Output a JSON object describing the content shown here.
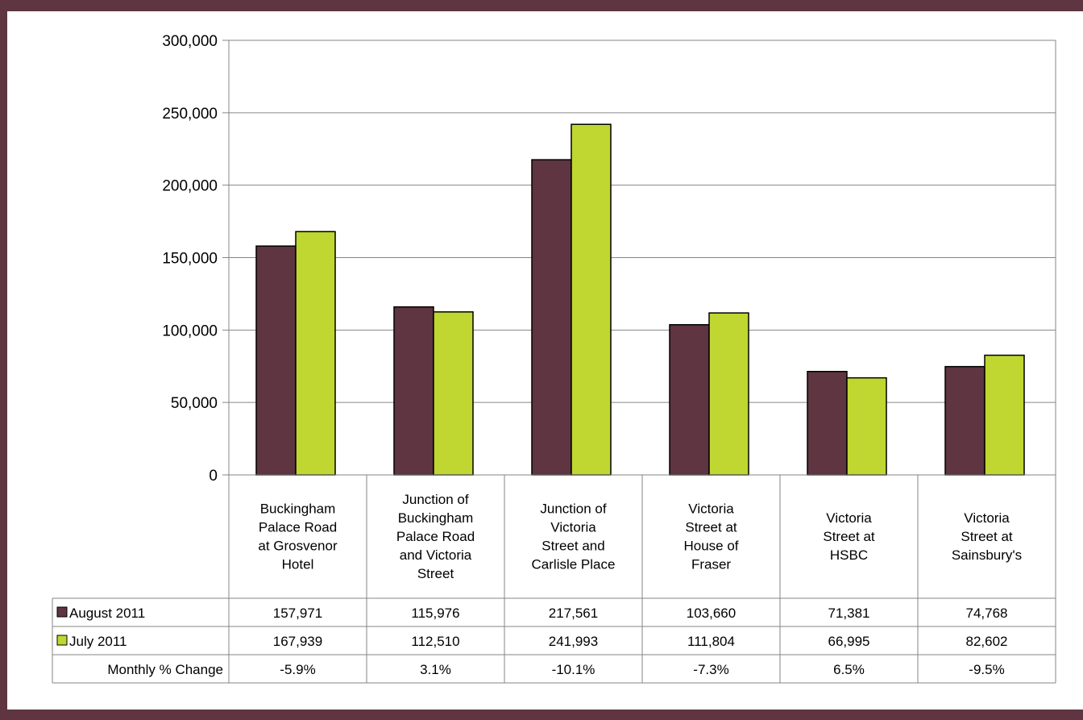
{
  "colors": {
    "background": "#5e3540",
    "august": "#5e3540",
    "july": "#bfd730",
    "grid": "#868686"
  },
  "chart_data": {
    "type": "bar",
    "categories": [
      [
        "Buckingham",
        "Palace Road",
        "at Grosvenor",
        "Hotel"
      ],
      [
        "Junction of",
        "Buckingham",
        "Palace Road",
        "and Victoria",
        "Street"
      ],
      [
        "Junction of",
        "Victoria",
        "Street and",
        "Carlisle Place"
      ],
      [
        "Victoria",
        "Street at",
        "House of",
        "Fraser"
      ],
      [
        "Victoria",
        "Street at",
        "HSBC"
      ],
      [
        "Victoria",
        "Street at",
        "Sainsbury's"
      ]
    ],
    "series": [
      {
        "name": "August 2011",
        "values": [
          157971,
          115976,
          217561,
          103660,
          71381,
          74768
        ],
        "labels": [
          "157,971",
          "115,976",
          "217,561",
          "103,660",
          "71,381",
          "74,768"
        ]
      },
      {
        "name": "July 2011",
        "values": [
          167939,
          112510,
          241993,
          111804,
          66995,
          82602
        ],
        "labels": [
          "167,939",
          "112,510",
          "241,993",
          "111,804",
          "66,995",
          "82,602"
        ]
      }
    ],
    "extra_row": {
      "name": "Monthly % Change",
      "values": [
        "-5.9%",
        "3.1%",
        "-10.1%",
        "-7.3%",
        "6.5%",
        "-9.5%"
      ]
    },
    "yticks": [
      0,
      50000,
      100000,
      150000,
      200000,
      250000,
      300000
    ],
    "ytick_labels": [
      "0",
      "50,000",
      "100,000",
      "150,000",
      "200,000",
      "250,000",
      "300,000"
    ],
    "ylim": [
      0,
      300000
    ],
    "grid": true,
    "legend": "data-table"
  }
}
